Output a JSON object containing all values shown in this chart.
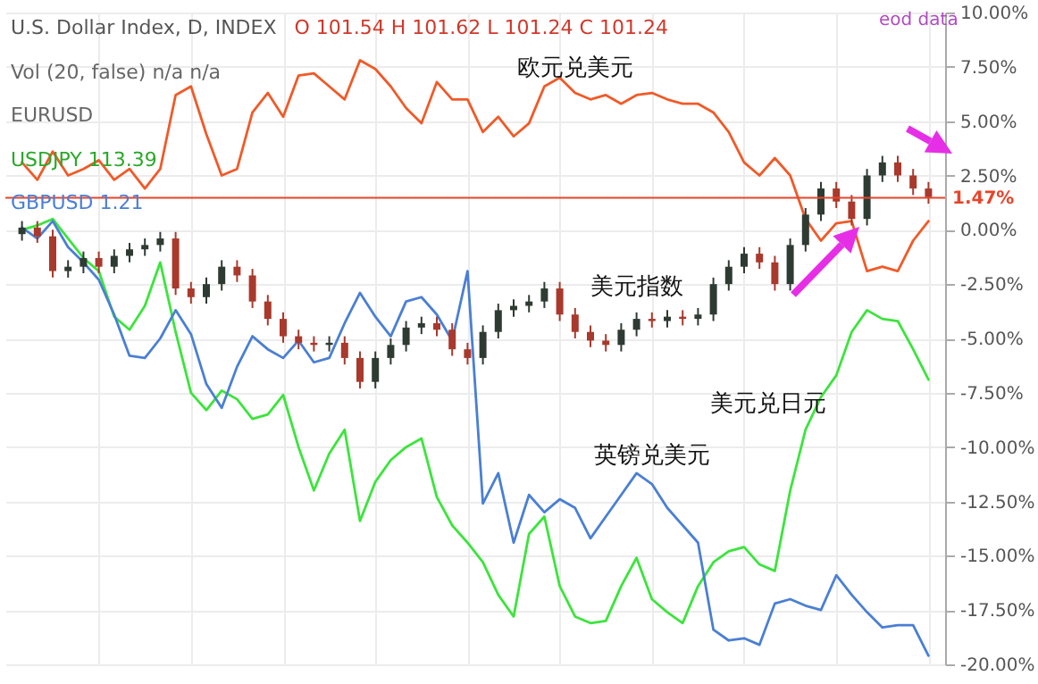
{
  "chart_data": {
    "type": "line",
    "title": "U.S. Dollar Index, D, INDEX",
    "annotations": [
      "O 101.54 H 101.62 L 101.24 C 101.24",
      "Vol (20, false) n/a n/a",
      "EURUSD",
      "USDJPY 113.39",
      "GBPUSD 1.21",
      "eod data"
    ],
    "categories": [
      null,
      null,
      null,
      null,
      null,
      null,
      null,
      null,
      null,
      null,
      null,
      null,
      null,
      null,
      null,
      null,
      null,
      null,
      null,
      null,
      null,
      null,
      null,
      null,
      null,
      null,
      null,
      null,
      null,
      null,
      null,
      null,
      null,
      null,
      null,
      null,
      null,
      null,
      null,
      null,
      null,
      null,
      null,
      null,
      null,
      null,
      null,
      null,
      null,
      null,
      null,
      null,
      null,
      null,
      null,
      null,
      null,
      null,
      null,
      null
    ],
    "series": [
      {
        "name": "欧元兑美元",
        "color": "#f05a28",
        "values": [
          3.1,
          2.3,
          3.6,
          2.5,
          2.8,
          3.2,
          2.3,
          2.8,
          1.9,
          2.8,
          6.2,
          6.6,
          4.4,
          2.5,
          2.8,
          5.4,
          6.3,
          5.2,
          7.1,
          7.2,
          6.6,
          6.0,
          7.8,
          7.4,
          6.6,
          5.6,
          4.9,
          6.8,
          6.0,
          6.0,
          4.5,
          5.2,
          4.3,
          4.9,
          6.6,
          7.0,
          6.3,
          6.0,
          6.2,
          5.8,
          6.2,
          6.3,
          6.0,
          5.8,
          5.8,
          5.4,
          4.5,
          3.1,
          2.5,
          3.3,
          2.5,
          0.5,
          -0.5,
          0.3,
          0.4,
          -1.9,
          -1.7,
          -1.9,
          -0.5,
          0.4
        ]
      },
      {
        "name": "美元兑日元",
        "color": "#3ce43c",
        "values": [
          0.0,
          0.2,
          0.5,
          -0.4,
          -1.3,
          -1.9,
          -4.0,
          -4.6,
          -3.5,
          -1.5,
          -4.7,
          -7.5,
          -8.3,
          -7.4,
          -7.8,
          -8.7,
          -8.5,
          -7.6,
          -10.0,
          -12.0,
          -10.3,
          -9.2,
          -13.4,
          -11.6,
          -10.6,
          -10.0,
          -9.6,
          -12.3,
          -13.6,
          -14.4,
          -15.3,
          -16.8,
          -17.8,
          -14.0,
          -13.2,
          -16.4,
          -17.8,
          -18.1,
          -18.0,
          -16.4,
          -15.1,
          -17.0,
          -17.6,
          -18.1,
          -16.4,
          -15.3,
          -14.8,
          -14.6,
          -15.4,
          -15.7,
          -12.0,
          -9.2,
          -7.7,
          -6.7,
          -4.7,
          -3.7,
          -4.1,
          -4.2,
          -5.5,
          -6.9
        ]
      },
      {
        "name": "英镑兑美元",
        "color": "#4a7fd4",
        "values": [
          0.1,
          -0.4,
          0.4,
          -0.8,
          -1.5,
          -2.3,
          -3.9,
          -5.8,
          -5.9,
          -5.0,
          -3.7,
          -4.8,
          -7.1,
          -8.2,
          -6.3,
          -4.9,
          -5.5,
          -5.9,
          -5.1,
          -6.1,
          -5.9,
          -4.3,
          -2.9,
          -4.0,
          -4.9,
          -3.3,
          -3.1,
          -3.9,
          -5.1,
          -1.9,
          -12.6,
          -11.2,
          -14.4,
          -12.2,
          -13.0,
          -12.4,
          -12.8,
          -14.2,
          -13.2,
          -12.2,
          -11.2,
          -11.7,
          -12.8,
          -13.6,
          -14.4,
          -18.4,
          -18.9,
          -18.8,
          -19.1,
          -17.2,
          -17.0,
          -17.3,
          -17.5,
          -15.9,
          -16.8,
          -17.6,
          -18.3,
          -18.2,
          -18.2,
          -19.6
        ]
      },
      {
        "name": "美元指数",
        "type": "candlestick",
        "colors": [
          "#2e3b33",
          "#a8392c",
          "#a8392c",
          "#2e3b33",
          "#2e3b33",
          "#a8392c",
          "#2e3b33",
          "#2e3b33",
          "#2e3b33",
          "#2e3b33",
          "#a8392c",
          "#a8392c",
          "#2e3b33",
          "#2e3b33",
          "#a8392c",
          "#a8392c",
          "#a8392c",
          "#a8392c",
          "#a8392c",
          "#a8392c",
          "#2e3b33",
          "#a8392c",
          "#a8392c",
          "#2e3b33",
          "#2e3b33",
          "#2e3b33",
          "#2e3b33",
          "#a8392c",
          "#a8392c",
          "#a8392c",
          "#2e3b33",
          "#2e3b33",
          "#2e3b33",
          "#2e3b33",
          "#2e3b33",
          "#a8392c",
          "#a8392c",
          "#a8392c",
          "#a8392c",
          "#2e3b33",
          "#2e3b33",
          "#a8392c",
          "#2e3b33",
          "#a8392c",
          "#2e3b33",
          "#2e3b33",
          "#2e3b33",
          "#2e3b33",
          "#a8392c",
          "#a8392c",
          "#2e3b33",
          "#2e3b33",
          "#2e3b33",
          "#a8392c",
          "#a8392c",
          "#2e3b33",
          "#2e3b33",
          "#a8392c",
          "#a8392c",
          "#a8392c"
        ],
        "ohlc": [
          [
            -0.2,
            0.4,
            -0.5,
            0.1
          ],
          [
            0.1,
            0.4,
            -0.6,
            -0.3
          ],
          [
            -0.3,
            0.0,
            -2.2,
            -1.9
          ],
          [
            -1.9,
            -1.4,
            -2.2,
            -1.7
          ],
          [
            -1.7,
            -1.0,
            -2.0,
            -1.3
          ],
          [
            -1.3,
            -1.0,
            -2.0,
            -1.7
          ],
          [
            -1.7,
            -0.9,
            -2.0,
            -1.2
          ],
          [
            -1.2,
            -0.6,
            -1.5,
            -0.9
          ],
          [
            -0.9,
            -0.4,
            -1.2,
            -0.7
          ],
          [
            -0.7,
            -0.1,
            -1.0,
            -0.4
          ],
          [
            -0.4,
            -0.1,
            -3.0,
            -2.7
          ],
          [
            -2.7,
            -2.4,
            -3.4,
            -3.1
          ],
          [
            -3.1,
            -2.2,
            -3.4,
            -2.5
          ],
          [
            -2.5,
            -1.4,
            -2.8,
            -1.7
          ],
          [
            -1.7,
            -1.4,
            -2.4,
            -2.1
          ],
          [
            -2.1,
            -1.8,
            -3.6,
            -3.3
          ],
          [
            -3.3,
            -3.0,
            -4.4,
            -4.1
          ],
          [
            -4.1,
            -3.8,
            -5.2,
            -4.9
          ],
          [
            -4.9,
            -4.6,
            -5.5,
            -5.2
          ],
          [
            -5.2,
            -4.9,
            -5.6,
            -5.3
          ],
          [
            -5.3,
            -4.9,
            -5.6,
            -5.2
          ],
          [
            -5.2,
            -4.9,
            -6.2,
            -5.9
          ],
          [
            -5.9,
            -5.6,
            -7.3,
            -7.0
          ],
          [
            -7.0,
            -5.6,
            -7.3,
            -5.9
          ],
          [
            -5.9,
            -5.0,
            -6.2,
            -5.3
          ],
          [
            -5.3,
            -4.2,
            -5.6,
            -4.5
          ],
          [
            -4.5,
            -4.0,
            -4.8,
            -4.3
          ],
          [
            -4.3,
            -4.0,
            -4.9,
            -4.6
          ],
          [
            -4.6,
            -4.3,
            -5.8,
            -5.5
          ],
          [
            -5.5,
            -5.2,
            -6.2,
            -5.9
          ],
          [
            -5.9,
            -4.4,
            -6.2,
            -4.7
          ],
          [
            -4.7,
            -3.4,
            -5.0,
            -3.7
          ],
          [
            -3.7,
            -3.2,
            -4.0,
            -3.5
          ],
          [
            -3.5,
            -3.0,
            -3.8,
            -3.3
          ],
          [
            -3.3,
            -2.4,
            -3.6,
            -2.7
          ],
          [
            -2.7,
            -2.4,
            -4.2,
            -3.9
          ],
          [
            -3.9,
            -3.6,
            -5.0,
            -4.7
          ],
          [
            -4.7,
            -4.4,
            -5.4,
            -5.1
          ],
          [
            -5.1,
            -4.8,
            -5.6,
            -5.3
          ],
          [
            -5.3,
            -4.3,
            -5.6,
            -4.6
          ],
          [
            -4.6,
            -3.8,
            -4.9,
            -4.1
          ],
          [
            -4.1,
            -3.8,
            -4.5,
            -4.2
          ],
          [
            -4.2,
            -3.7,
            -4.5,
            -4.0
          ],
          [
            -4.0,
            -3.7,
            -4.4,
            -4.1
          ],
          [
            -4.1,
            -3.6,
            -4.4,
            -3.9
          ],
          [
            -3.9,
            -2.2,
            -4.2,
            -2.5
          ],
          [
            -2.5,
            -1.4,
            -2.8,
            -1.7
          ],
          [
            -1.7,
            -0.8,
            -2.0,
            -1.1
          ],
          [
            -1.1,
            -0.8,
            -1.8,
            -1.5
          ],
          [
            -1.5,
            -1.2,
            -2.8,
            -2.5
          ],
          [
            -2.5,
            -0.4,
            -2.8,
            -0.7
          ],
          [
            -0.7,
            1.0,
            -1.0,
            0.7
          ],
          [
            0.7,
            2.2,
            0.4,
            1.9
          ],
          [
            1.9,
            2.2,
            1.0,
            1.3
          ],
          [
            1.3,
            1.6,
            0.2,
            0.5
          ],
          [
            0.5,
            2.8,
            0.2,
            2.5
          ],
          [
            2.5,
            3.4,
            2.2,
            3.1
          ],
          [
            3.1,
            3.4,
            2.2,
            2.5
          ],
          [
            2.5,
            2.8,
            1.6,
            1.9
          ],
          [
            1.9,
            2.2,
            1.2,
            1.5
          ]
        ]
      }
    ],
    "ylim": [
      -20,
      10
    ],
    "yticks": [
      {
        "value": 10,
        "label": "10.00%"
      },
      {
        "value": 7.5,
        "label": "7.50%"
      },
      {
        "value": 5,
        "label": "5.00%"
      },
      {
        "value": 2.5,
        "label": "2.50%"
      },
      {
        "value": 0,
        "label": "0.00%"
      },
      {
        "value": -2.5,
        "label": "-2.50%"
      },
      {
        "value": -5,
        "label": "-5.00%"
      },
      {
        "value": -7.5,
        "label": "-7.50%"
      },
      {
        "value": -10,
        "label": "-10.00%"
      },
      {
        "value": -12.5,
        "label": "-12.50%"
      },
      {
        "value": -15,
        "label": "-15.00%"
      },
      {
        "value": -17.5,
        "label": "-17.50%"
      },
      {
        "value": -20,
        "label": "-20.00%"
      }
    ],
    "grid": true,
    "ref_lines": [
      {
        "axis": "y",
        "value": 1.47,
        "label": "1.47%",
        "color": "#e8442a"
      }
    ]
  }
}
